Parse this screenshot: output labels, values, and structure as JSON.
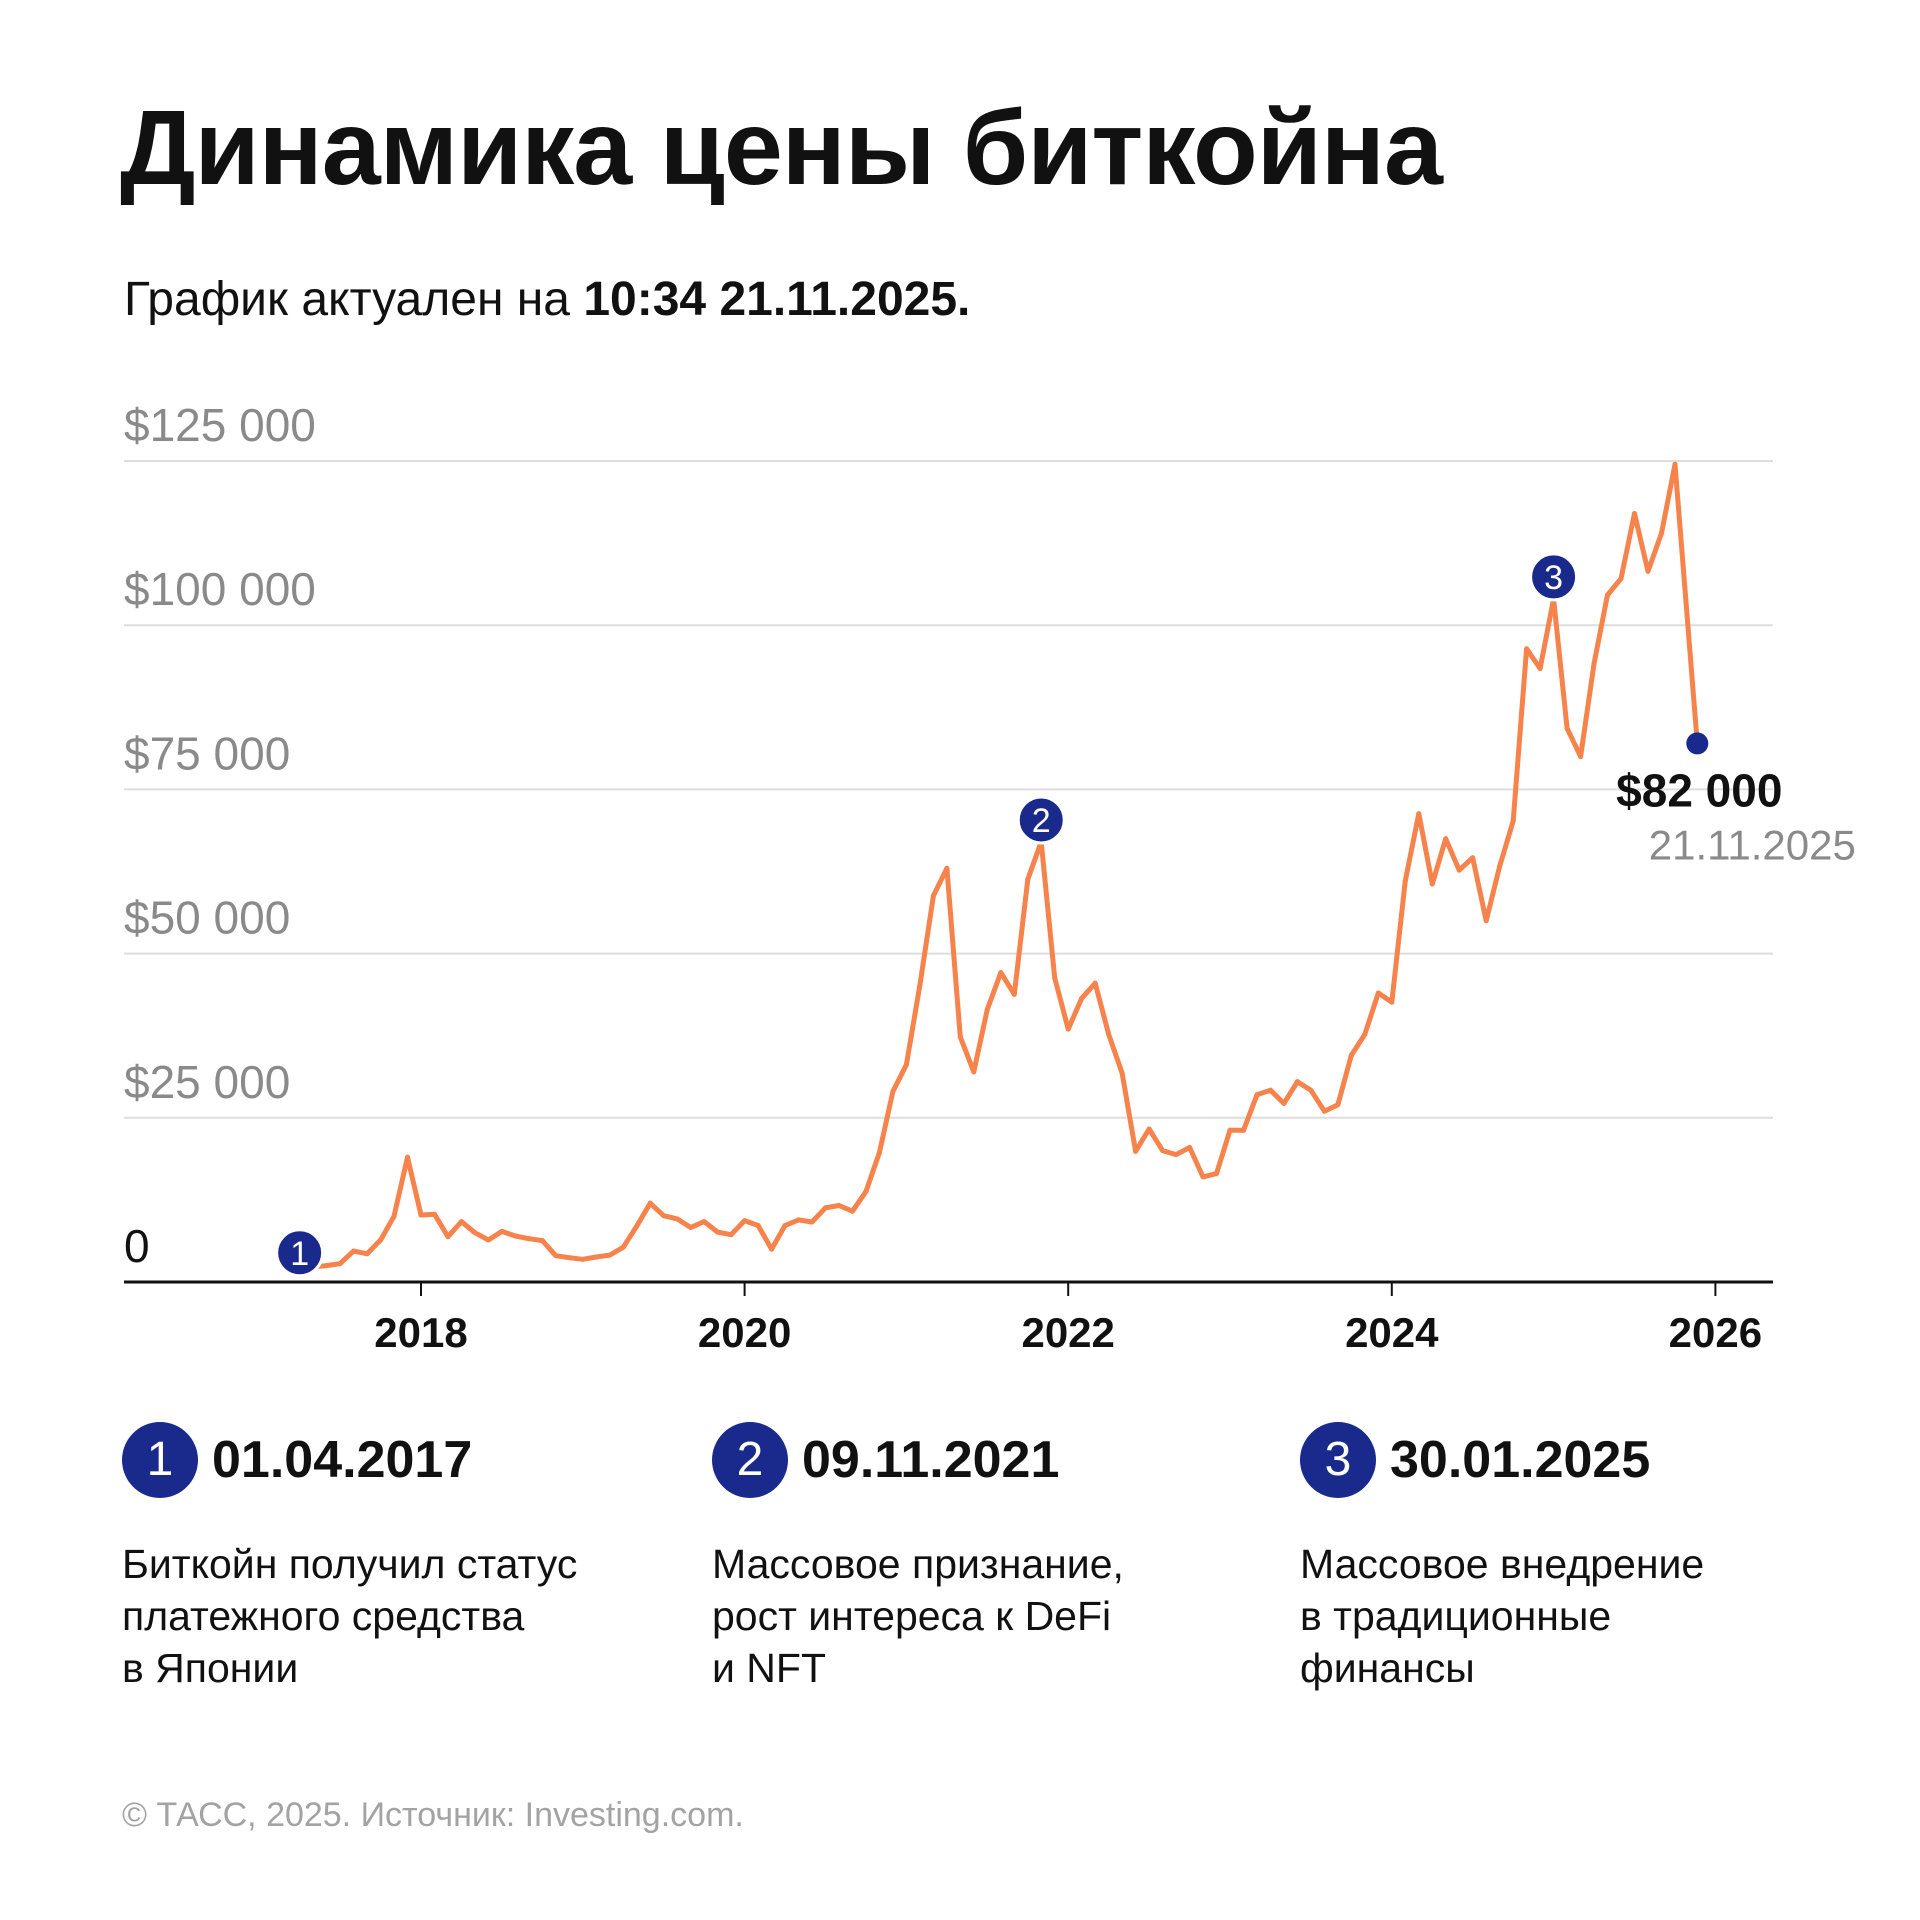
{
  "title": "Динамика цены биткойна",
  "subtitle": {
    "prefix": "График актуален на",
    "timestamp": "10:34 21.11.2025."
  },
  "colors": {
    "line": "#f5834b",
    "marker": "#1a2a8c",
    "grid": "#dddddd",
    "axis_label": "#8a8a8a"
  },
  "chart_data": {
    "type": "line",
    "title": "Динамика цены биткойна",
    "xlabel": "",
    "ylabel": "",
    "ylim": [
      0,
      125000
    ],
    "xlim": [
      "2016-07",
      "2026-07"
    ],
    "grid": true,
    "y_ticks": [
      {
        "value": 0,
        "label": "0"
      },
      {
        "value": 25000,
        "label": "$25 000"
      },
      {
        "value": 50000,
        "label": "$50 000"
      },
      {
        "value": 75000,
        "label": "$75 000"
      },
      {
        "value": 100000,
        "label": "$100 000"
      },
      {
        "value": 125000,
        "label": "$125 000"
      }
    ],
    "x_ticks": [
      "2018",
      "2020",
      "2022",
      "2024",
      "2026"
    ],
    "series": [
      {
        "x": [
          "2017-04",
          "2017-05",
          "2017-06",
          "2017-07",
          "2017-08",
          "2017-09",
          "2017-10",
          "2017-11",
          "2017-12",
          "2018-01",
          "2018-02",
          "2018-03",
          "2018-04",
          "2018-05",
          "2018-06",
          "2018-07",
          "2018-08",
          "2018-09",
          "2018-10",
          "2018-11",
          "2018-12",
          "2019-01",
          "2019-02",
          "2019-03",
          "2019-04",
          "2019-05",
          "2019-06",
          "2019-07",
          "2019-08",
          "2019-09",
          "2019-10",
          "2019-11",
          "2019-12",
          "2020-01",
          "2020-02",
          "2020-03",
          "2020-04",
          "2020-05",
          "2020-06",
          "2020-07",
          "2020-08",
          "2020-09",
          "2020-10",
          "2020-11",
          "2020-12",
          "2021-01",
          "2021-02",
          "2021-03",
          "2021-04",
          "2021-05",
          "2021-06",
          "2021-07",
          "2021-08",
          "2021-09",
          "2021-10",
          "2021-11",
          "2021-12",
          "2022-01",
          "2022-02",
          "2022-03",
          "2022-04",
          "2022-05",
          "2022-06",
          "2022-07",
          "2022-08",
          "2022-09",
          "2022-10",
          "2022-11",
          "2022-12",
          "2023-01",
          "2023-02",
          "2023-03",
          "2023-04",
          "2023-05",
          "2023-06",
          "2023-07",
          "2023-08",
          "2023-09",
          "2023-10",
          "2023-11",
          "2023-12",
          "2024-01",
          "2024-02",
          "2024-03",
          "2024-04",
          "2024-05",
          "2024-06",
          "2024-07",
          "2024-08",
          "2024-09",
          "2024-10",
          "2024-11",
          "2024-12",
          "2025-01",
          "2025-02",
          "2025-03",
          "2025-04",
          "2025-05",
          "2025-06",
          "2025-07",
          "2025-08",
          "2025-09",
          "2025-10",
          "2025-11-21"
        ],
        "y": [
          1100,
          2300,
          2500,
          2800,
          4700,
          4300,
          6400,
          10000,
          19000,
          10200,
          10300,
          6900,
          9200,
          7500,
          6400,
          7700,
          7000,
          6600,
          6300,
          4000,
          3700,
          3450,
          3800,
          4100,
          5300,
          8500,
          12000,
          10100,
          9600,
          8300,
          9200,
          7600,
          7200,
          9350,
          8600,
          5000,
          8600,
          9450,
          9140,
          11300,
          11650,
          10780,
          13800,
          19700,
          29000,
          33100,
          45200,
          58800,
          63000,
          37300,
          32000,
          41500,
          47100,
          43800,
          61300,
          67000,
          46300,
          38500,
          43200,
          45500,
          37700,
          31800,
          19900,
          23300,
          20000,
          19400,
          20500,
          16000,
          16500,
          23100,
          23100,
          28500,
          29200,
          27200,
          30500,
          29200,
          26000,
          27000,
          34500,
          37700,
          44000,
          42600,
          61100,
          71300,
          60600,
          67500,
          62700,
          64600,
          55000,
          63300,
          70200,
          96400,
          93400,
          104000,
          84300,
          80000,
          94200,
          104600,
          107100,
          117000,
          108200,
          114000,
          124500,
          82000
        ]
      }
    ],
    "annotations": [
      {
        "num": "1",
        "date": "2017-04",
        "value": 1100,
        "label_date": "01.04.2017",
        "text": [
          "Биткойн получил статус",
          "платежного средства",
          "в Японии"
        ]
      },
      {
        "num": "2",
        "date": "2021-11",
        "value": 67000,
        "label_date": "09.11.2021",
        "text": [
          "Массовое признание,",
          "рост интереса к DeFi",
          "и NFT"
        ]
      },
      {
        "num": "3",
        "date": "2025-01",
        "value": 104000,
        "label_date": "30.01.2025",
        "text": [
          "Массовое внедрение",
          "в традиционные",
          "финансы"
        ]
      }
    ],
    "last_point": {
      "value_label": "$82 000",
      "date_label": "21.11.2025"
    }
  },
  "footer": "© ТАСС, 2025. Источник: Investing.com."
}
